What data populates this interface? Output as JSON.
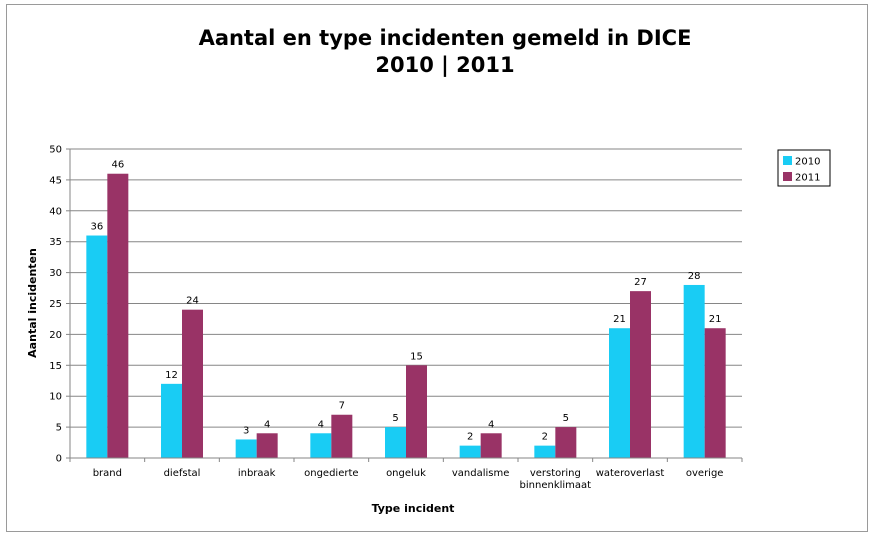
{
  "chart_data": {
    "type": "bar",
    "title": [
      "Aantal en type incidenten gemeld in DICE",
      "2010 | 2011"
    ],
    "xlabel": "Type incident",
    "ylabel": "Aantal incidenten",
    "categories": [
      [
        "brand"
      ],
      [
        "diefstal"
      ],
      [
        "inbraak"
      ],
      [
        "ongedierte"
      ],
      [
        "ongeluk"
      ],
      [
        "vandalisme"
      ],
      [
        "verstoring",
        "binnenklimaat"
      ],
      [
        "wateroverlast"
      ],
      [
        "overige"
      ]
    ],
    "series": [
      {
        "name": "2010",
        "color": "#19CCF4",
        "values": [
          36,
          12,
          3,
          4,
          5,
          2,
          2,
          21,
          28
        ]
      },
      {
        "name": "2011",
        "color": "#993366",
        "values": [
          46,
          24,
          4,
          7,
          15,
          4,
          5,
          27,
          21
        ]
      }
    ],
    "ylim": [
      0,
      50
    ],
    "yticks": [
      0,
      5,
      10,
      15,
      20,
      25,
      30,
      35,
      40,
      45,
      50
    ],
    "grid": true,
    "legend": "right",
    "data_labels": true
  }
}
